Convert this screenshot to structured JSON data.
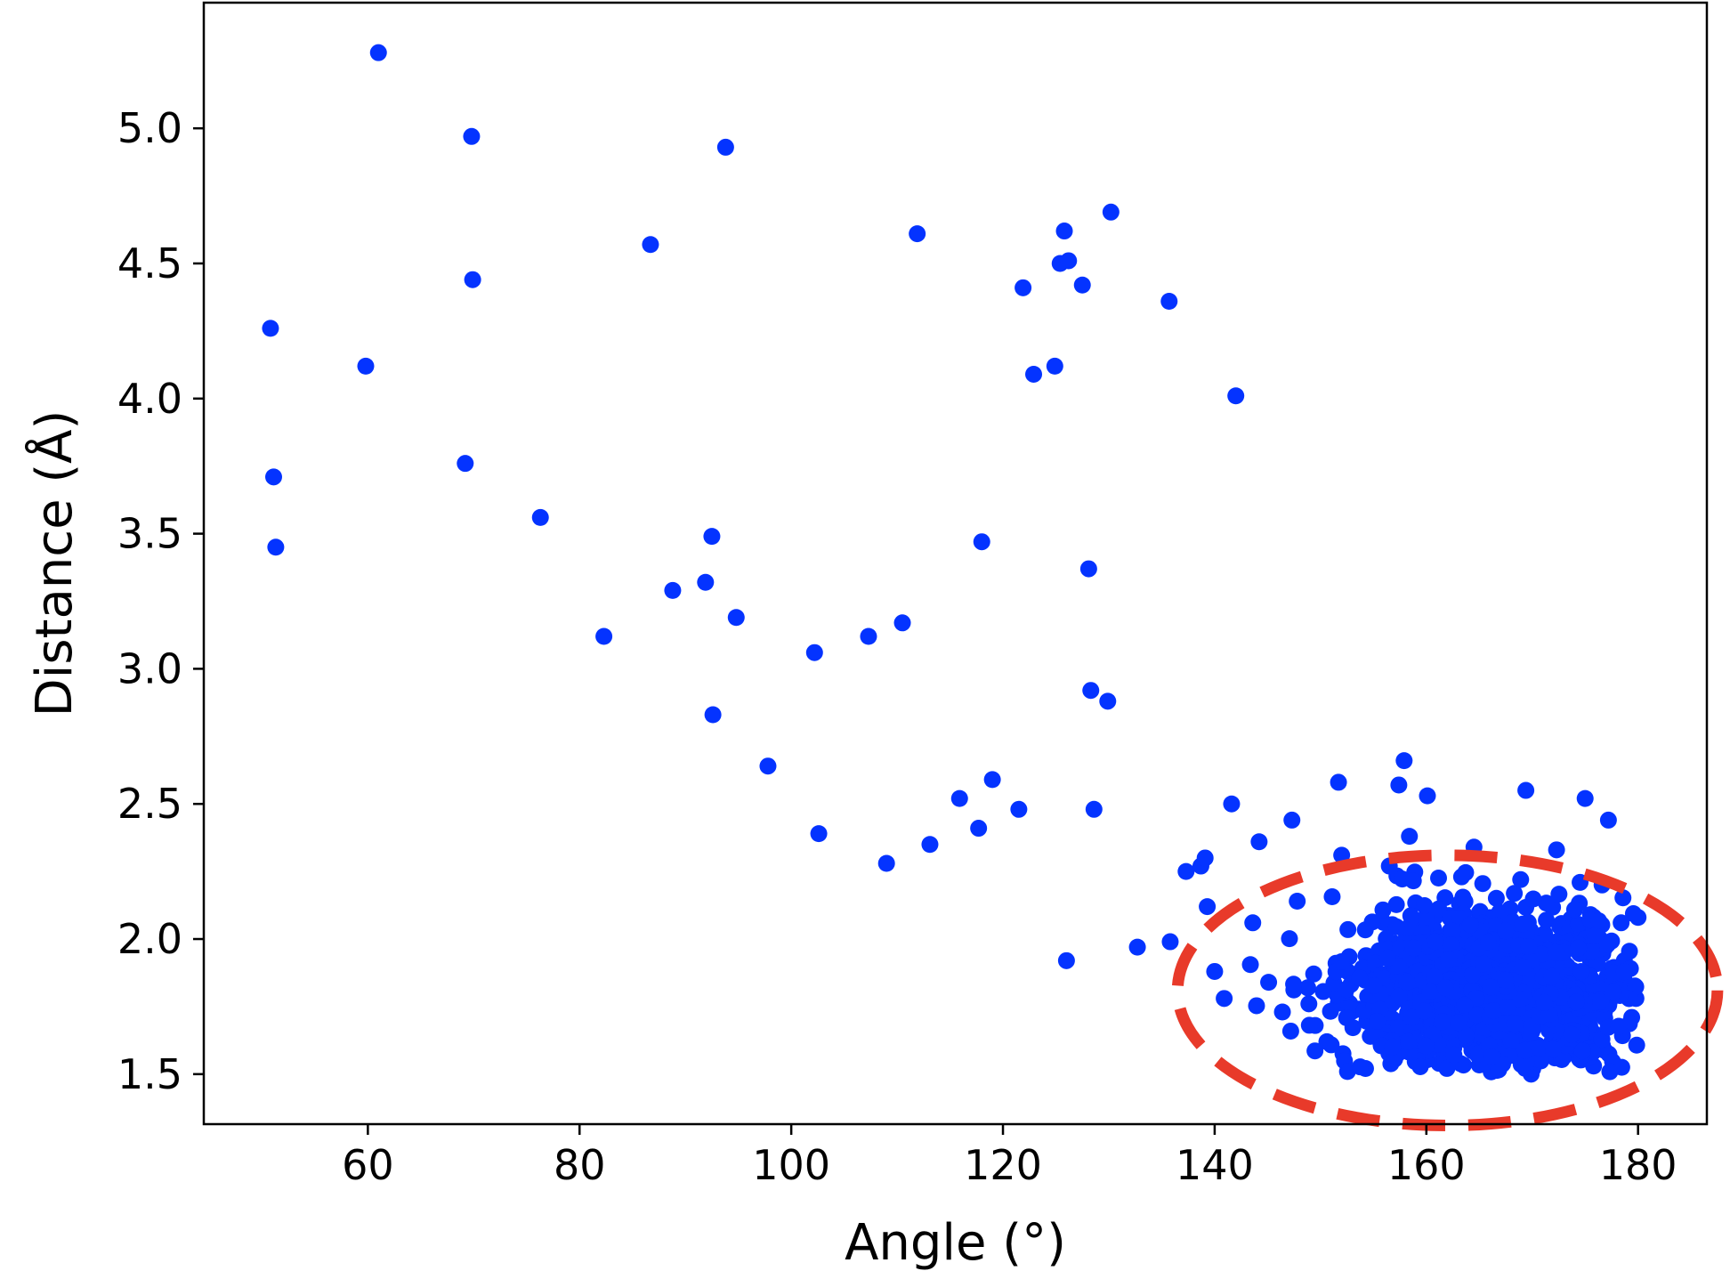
{
  "chart_data": {
    "type": "scatter",
    "title": "",
    "xlabel": "Angle (°)",
    "ylabel": "Distance (Å)",
    "xlim": [
      44.5,
      186.5
    ],
    "ylim": [
      1.315,
      5.465
    ],
    "xticks": [
      60,
      80,
      100,
      120,
      140,
      160,
      180
    ],
    "yticks": [
      1.5,
      2.0,
      2.5,
      3.0,
      3.5,
      4.0,
      4.5,
      5.0
    ],
    "xtick_labels": [
      "60",
      "80",
      "100",
      "120",
      "140",
      "160",
      "180"
    ],
    "ytick_labels": [
      "1.5",
      "2.0",
      "2.5",
      "3.0",
      "3.5",
      "4.0",
      "4.5",
      "5.0"
    ],
    "grid": false,
    "legend": "none",
    "colors": {
      "points": "#0433ff",
      "highlight": "#e83a2a"
    },
    "series": [
      {
        "points": [
          [
            61.0,
            5.28
          ],
          [
            69.8,
            4.97
          ],
          [
            93.8,
            4.93
          ],
          [
            86.7,
            4.57
          ],
          [
            69.9,
            4.44
          ],
          [
            50.8,
            4.26
          ],
          [
            59.8,
            4.12
          ],
          [
            51.1,
            3.71
          ],
          [
            51.3,
            3.45
          ],
          [
            69.2,
            3.76
          ],
          [
            76.3,
            3.56
          ],
          [
            82.3,
            3.12
          ],
          [
            88.8,
            3.29
          ],
          [
            91.9,
            3.32
          ],
          [
            92.5,
            3.49
          ],
          [
            94.8,
            3.19
          ],
          [
            92.6,
            2.83
          ],
          [
            97.8,
            2.64
          ],
          [
            102.2,
            3.06
          ],
          [
            102.6,
            2.39
          ],
          [
            107.3,
            3.12
          ],
          [
            110.5,
            3.17
          ],
          [
            109.0,
            2.28
          ],
          [
            113.1,
            2.35
          ],
          [
            111.9,
            4.61
          ],
          [
            115.9,
            2.52
          ],
          [
            117.7,
            2.41
          ],
          [
            118.0,
            3.47
          ],
          [
            119.0,
            2.59
          ],
          [
            121.5,
            2.48
          ],
          [
            121.9,
            4.41
          ],
          [
            122.9,
            4.09
          ],
          [
            124.9,
            4.12
          ],
          [
            125.4,
            4.5
          ],
          [
            125.8,
            4.62
          ],
          [
            126.2,
            4.51
          ],
          [
            127.5,
            4.42
          ],
          [
            128.1,
            3.37
          ],
          [
            128.3,
            2.92
          ],
          [
            128.6,
            2.48
          ],
          [
            129.9,
            2.88
          ],
          [
            130.2,
            4.69
          ],
          [
            126.0,
            1.92
          ],
          [
            132.7,
            1.97
          ],
          [
            135.7,
            4.36
          ],
          [
            135.8,
            1.99
          ],
          [
            137.3,
            2.25
          ],
          [
            138.7,
            2.27
          ],
          [
            139.1,
            2.3
          ],
          [
            139.3,
            2.12
          ],
          [
            140.0,
            1.88
          ],
          [
            140.9,
            1.78
          ],
          [
            141.6,
            2.5
          ],
          [
            142.0,
            4.01
          ],
          [
            144.2,
            2.36
          ],
          [
            147.3,
            2.44
          ],
          [
            151.7,
            2.58
          ],
          [
            157.4,
            2.57
          ],
          [
            157.9,
            2.66
          ],
          [
            160.1,
            2.53
          ],
          [
            169.4,
            2.55
          ],
          [
            175.0,
            2.52
          ],
          [
            177.2,
            2.44
          ],
          [
            143.6,
            2.06
          ],
          [
            145.1,
            1.84
          ],
          [
            146.4,
            1.73
          ],
          [
            147.8,
            2.14
          ],
          [
            149.5,
            1.68
          ],
          [
            150.6,
            1.62
          ],
          [
            152.0,
            2.31
          ],
          [
            154.7,
            1.64
          ],
          [
            156.5,
            2.27
          ],
          [
            158.4,
            2.38
          ],
          [
            161.2,
            1.54
          ],
          [
            164.5,
            2.34
          ],
          [
            166.2,
            1.53
          ],
          [
            169.9,
            1.5
          ],
          [
            172.3,
            2.33
          ],
          [
            175.8,
            1.53
          ],
          [
            176.6,
            2.2
          ],
          [
            178.7,
            1.92
          ],
          [
            179.4,
            1.71
          ],
          [
            180.0,
            2.08
          ],
          [
            179.8,
            1.78
          ],
          [
            178.4,
            2.06
          ]
        ]
      }
    ],
    "cluster": {
      "description": "dense cluster of many overlapping points",
      "x_range": [
        143,
        180
      ],
      "y_range": [
        1.5,
        2.38
      ],
      "center": [
        166.0,
        1.82
      ]
    },
    "annotations": [
      {
        "type": "dashed-ellipse",
        "color": "#e83a2a",
        "center": [
          162.0,
          1.81
        ],
        "radius_x": 25.5,
        "radius_y": 0.5
      }
    ]
  }
}
